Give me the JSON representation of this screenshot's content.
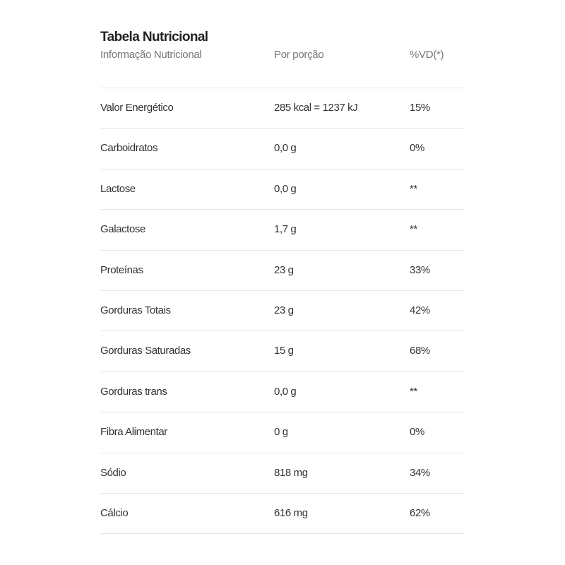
{
  "title": "Tabela Nutricional",
  "header": {
    "col1": "Informação Nutricional",
    "col2": "Por porção",
    "col3": "%VD(*)"
  },
  "rows": [
    {
      "name": "Valor Energético",
      "portion": "285 kcal = 1237 kJ",
      "vd": "15%"
    },
    {
      "name": "Carboidratos",
      "portion": "0,0 g",
      "vd": "0%"
    },
    {
      "name": "Lactose",
      "portion": "0,0 g",
      "vd": "**"
    },
    {
      "name": "Galactose",
      "portion": "1,7 g",
      "vd": "**"
    },
    {
      "name": "Proteínas",
      "portion": "23 g",
      "vd": "33%"
    },
    {
      "name": "Gorduras Totais",
      "portion": "23 g",
      "vd": "42%"
    },
    {
      "name": "Gorduras Saturadas",
      "portion": "15 g",
      "vd": "68%"
    },
    {
      "name": "Gorduras trans",
      "portion": "0,0 g",
      "vd": "**"
    },
    {
      "name": "Fibra Alimentar",
      "portion": "0 g",
      "vd": "0%"
    },
    {
      "name": "Sódio",
      "portion": "818 mg",
      "vd": "34%"
    },
    {
      "name": "Cálcio",
      "portion": "616 mg",
      "vd": "62%"
    }
  ]
}
